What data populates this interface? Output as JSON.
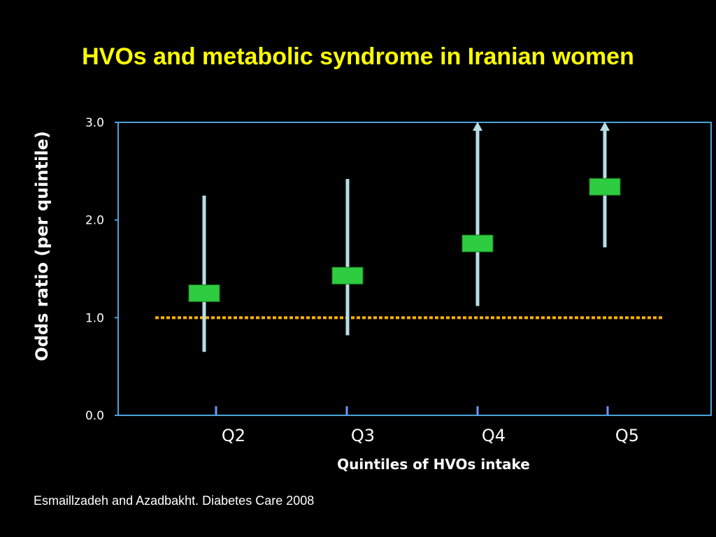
{
  "slide": {
    "title": "HVOs and metabolic syndrome in Iranian women",
    "citation": "Esmaillzadeh and Azadbakht. Diabetes Care 2008"
  },
  "colors": {
    "background": "#000000",
    "title": "#ffff00",
    "frame": "#4aa3d8",
    "axis_tick": "#6f96ff",
    "marker": "#2ecc40",
    "marker_border": "#1a7a20",
    "error_bar": "#b8dde6",
    "reference_line": "#ffb300"
  },
  "chart_data": {
    "type": "scatter",
    "title": "",
    "xlabel": "Quintiles of HVOs intake",
    "ylabel": "Odds ratio (per quintile)",
    "ylim": [
      0,
      3
    ],
    "yticks": [
      "0.0",
      "1.0",
      "2.0",
      "3.0"
    ],
    "ytick_values": [
      0,
      1,
      2,
      3
    ],
    "categories": [
      "Q2",
      "Q3",
      "Q4",
      "Q5"
    ],
    "series": [
      {
        "values": [
          1.25,
          1.43,
          1.76,
          2.34
        ],
        "lower": [
          0.65,
          0.82,
          1.12,
          1.72
        ],
        "upper": [
          2.25,
          2.42,
          3.0,
          3.0
        ],
        "upper_truncated": [
          false,
          false,
          true,
          true
        ]
      }
    ],
    "reference_line": 1.0,
    "grid": false,
    "legend": "none"
  }
}
